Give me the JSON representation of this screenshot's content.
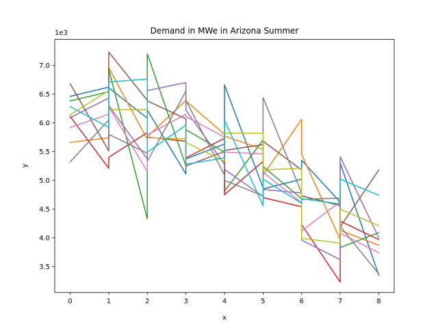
{
  "chart_data": {
    "type": "line",
    "title": "Demand in MWe in Arizona Summer",
    "xlabel": "x",
    "ylabel": "y",
    "y_offset_label": "1e3",
    "xlim": [
      -0.4,
      8.4
    ],
    "ylim": [
      3050,
      7450
    ],
    "x_ticks": [
      0,
      1,
      2,
      3,
      4,
      5,
      6,
      7,
      8
    ],
    "x_tick_labels": [
      "0",
      "1",
      "2",
      "3",
      "4",
      "5",
      "6",
      "7",
      "8"
    ],
    "y_ticks": [
      3500,
      4000,
      4500,
      5000,
      5500,
      6000,
      6500,
      7000
    ],
    "y_tick_labels": [
      "3.5",
      "4.0",
      "4.5",
      "5.0",
      "5.5",
      "6.0",
      "6.5",
      "7.0"
    ],
    "grid": false,
    "legend": "none",
    "series": [
      {
        "color": "#1f77b4",
        "points": [
          [
            0,
            6460
          ],
          [
            1,
            6620
          ],
          [
            1,
            6610
          ],
          [
            2,
            6080
          ],
          [
            2,
            6220
          ],
          [
            3,
            5110
          ],
          [
            3,
            5370
          ],
          [
            4,
            5630
          ],
          [
            4,
            6660
          ],
          [
            5,
            4870
          ],
          [
            5,
            4850
          ],
          [
            6,
            5020
          ],
          [
            6,
            5350
          ],
          [
            7,
            4620
          ],
          [
            7,
            5300
          ],
          [
            8,
            3350
          ]
        ]
      },
      {
        "color": "#ff7f0e",
        "points": [
          [
            0,
            5660
          ],
          [
            1,
            5740
          ],
          [
            1,
            6960
          ],
          [
            2,
            5710
          ],
          [
            2,
            5760
          ],
          [
            3,
            6390
          ],
          [
            3,
            6380
          ],
          [
            4,
            5800
          ],
          [
            4,
            5770
          ],
          [
            5,
            5540
          ],
          [
            5,
            5090
          ],
          [
            6,
            6060
          ],
          [
            6,
            5450
          ],
          [
            7,
            3970
          ],
          [
            7,
            4130
          ],
          [
            8,
            3870
          ]
        ]
      },
      {
        "color": "#2ca02c",
        "points": [
          [
            0,
            6380
          ],
          [
            1,
            6540
          ],
          [
            1,
            6930
          ],
          [
            2,
            4330
          ],
          [
            2,
            7200
          ],
          [
            3,
            5250
          ],
          [
            3,
            5880
          ],
          [
            4,
            5490
          ],
          [
            4,
            4810
          ],
          [
            5,
            5700
          ],
          [
            5,
            5240
          ],
          [
            6,
            4680
          ],
          [
            6,
            4730
          ],
          [
            7,
            4560
          ],
          [
            7,
            3830
          ],
          [
            8,
            4090
          ]
        ]
      },
      {
        "color": "#d62728",
        "points": [
          [
            0,
            6110
          ],
          [
            1,
            5210
          ],
          [
            1,
            5400
          ],
          [
            2,
            5830
          ],
          [
            2,
            5750
          ],
          [
            3,
            5680
          ],
          [
            3,
            5390
          ],
          [
            4,
            5730
          ],
          [
            4,
            4750
          ],
          [
            5,
            5330
          ],
          [
            5,
            4700
          ],
          [
            6,
            4540
          ],
          [
            6,
            4230
          ],
          [
            7,
            3230
          ],
          [
            7,
            4290
          ],
          [
            8,
            3970
          ]
        ]
      },
      {
        "color": "#9467bd",
        "points": [
          [
            0,
            6090
          ],
          [
            1,
            6430
          ],
          [
            1,
            6300
          ],
          [
            2,
            5370
          ],
          [
            2,
            6560
          ],
          [
            3,
            6700
          ],
          [
            3,
            6220
          ],
          [
            4,
            5280
          ],
          [
            4,
            5190
          ],
          [
            5,
            4720
          ],
          [
            5,
            4840
          ],
          [
            6,
            4780
          ],
          [
            6,
            3960
          ],
          [
            7,
            3620
          ],
          [
            7,
            5410
          ],
          [
            8,
            4000
          ]
        ]
      },
      {
        "color": "#8c564b",
        "points": [
          [
            0,
            6680
          ],
          [
            1,
            5510
          ],
          [
            1,
            7230
          ],
          [
            2,
            6390
          ],
          [
            2,
            6380
          ],
          [
            3,
            6070
          ],
          [
            3,
            5250
          ],
          [
            4,
            5500
          ],
          [
            4,
            5520
          ],
          [
            5,
            5620
          ],
          [
            5,
            5680
          ],
          [
            6,
            5180
          ],
          [
            6,
            4730
          ],
          [
            7,
            4560
          ],
          [
            7,
            4190
          ],
          [
            8,
            5180
          ]
        ]
      },
      {
        "color": "#e377c2",
        "points": [
          [
            0,
            5920
          ],
          [
            1,
            6150
          ],
          [
            1,
            6280
          ],
          [
            2,
            5150
          ],
          [
            2,
            5790
          ],
          [
            3,
            6150
          ],
          [
            3,
            6110
          ],
          [
            4,
            5750
          ],
          [
            4,
            5490
          ],
          [
            5,
            5460
          ],
          [
            5,
            5140
          ],
          [
            6,
            4610
          ],
          [
            6,
            4120
          ],
          [
            7,
            4630
          ],
          [
            7,
            4080
          ],
          [
            8,
            3740
          ]
        ]
      },
      {
        "color": "#7f7f7f",
        "points": [
          [
            0,
            5320
          ],
          [
            1,
            6050
          ],
          [
            1,
            5800
          ],
          [
            2,
            5470
          ],
          [
            2,
            5330
          ],
          [
            3,
            6550
          ],
          [
            3,
            6390
          ],
          [
            4,
            5090
          ],
          [
            4,
            5000
          ],
          [
            5,
            4730
          ],
          [
            5,
            6440
          ],
          [
            6,
            4780
          ],
          [
            6,
            4670
          ],
          [
            7,
            4690
          ],
          [
            7,
            4200
          ],
          [
            8,
            3370
          ]
        ]
      },
      {
        "color": "#bcbd22",
        "points": [
          [
            0,
            6140
          ],
          [
            1,
            6560
          ],
          [
            1,
            6230
          ],
          [
            2,
            6230
          ],
          [
            2,
            5740
          ],
          [
            3,
            5720
          ],
          [
            3,
            5660
          ],
          [
            4,
            5330
          ],
          [
            4,
            5820
          ],
          [
            5,
            5820
          ],
          [
            5,
            5180
          ],
          [
            6,
            5210
          ],
          [
            6,
            3990
          ],
          [
            7,
            3910
          ],
          [
            7,
            4500
          ],
          [
            8,
            4210
          ]
        ]
      },
      {
        "color": "#17becf",
        "points": [
          [
            0,
            6280
          ],
          [
            1,
            5920
          ],
          [
            1,
            6710
          ],
          [
            2,
            6760
          ],
          [
            2,
            5490
          ],
          [
            3,
            5960
          ],
          [
            3,
            5280
          ],
          [
            4,
            5390
          ],
          [
            4,
            6050
          ],
          [
            5,
            4560
          ],
          [
            5,
            5020
          ],
          [
            6,
            4600
          ],
          [
            6,
            4680
          ],
          [
            7,
            4590
          ],
          [
            7,
            5020
          ],
          [
            8,
            4740
          ]
        ]
      }
    ]
  }
}
